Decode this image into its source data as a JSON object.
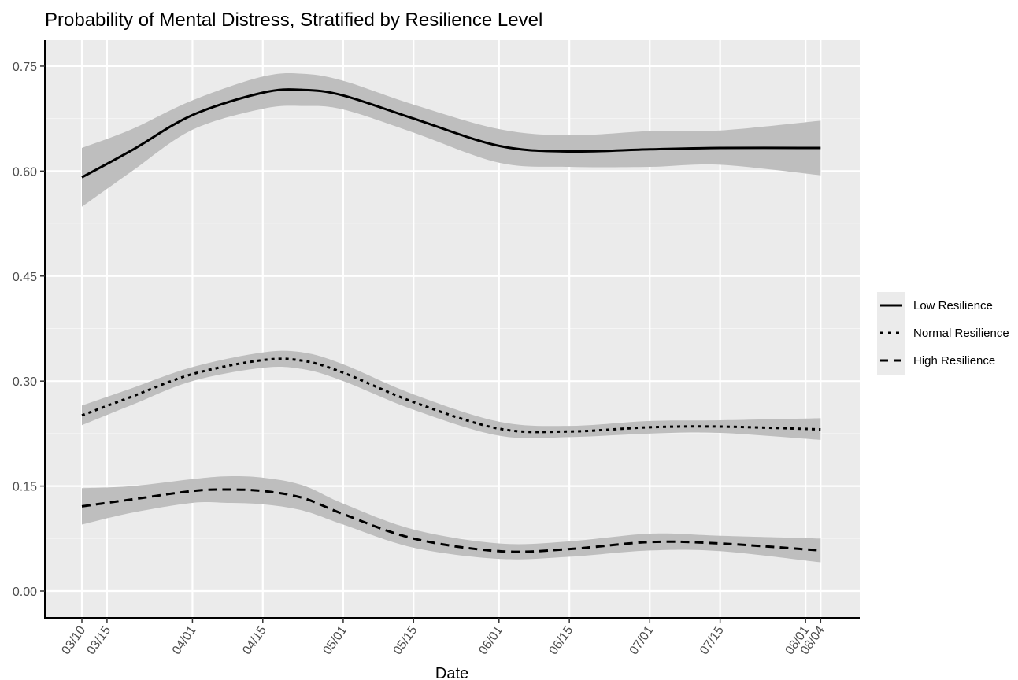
{
  "chart_data": {
    "type": "line",
    "title": "Probability of Mental Distress, Stratified by Resilience Level",
    "xlabel": "Date",
    "ylabel": "",
    "x_ticks": [
      "03/10",
      "03/15",
      "04/01",
      "04/15",
      "05/01",
      "05/15",
      "06/01",
      "06/15",
      "07/01",
      "07/15",
      "08/01",
      "08/04"
    ],
    "x_tick_days": [
      0,
      5,
      22,
      36,
      52,
      66,
      83,
      97,
      113,
      127,
      144,
      147
    ],
    "y_ticks": [
      "0.00",
      "0.15",
      "0.30",
      "0.45",
      "0.60",
      "0.75"
    ],
    "ylim": [
      -0.037,
      0.787
    ],
    "grid": true,
    "legend_position": "right",
    "series": [
      {
        "name": "Low Resilience",
        "linestyle": "solid",
        "x": [
          0,
          10,
          22,
          36,
          44,
          52,
          66,
          83,
          97,
          113,
          127,
          147
        ],
        "y": [
          0.591,
          0.63,
          0.68,
          0.712,
          0.716,
          0.708,
          0.675,
          0.636,
          0.628,
          0.631,
          0.633,
          0.633
        ],
        "lower": [
          0.549,
          0.6,
          0.659,
          0.689,
          0.693,
          0.688,
          0.655,
          0.612,
          0.606,
          0.606,
          0.609,
          0.594
        ],
        "upper": [
          0.633,
          0.66,
          0.701,
          0.735,
          0.739,
          0.729,
          0.695,
          0.66,
          0.651,
          0.657,
          0.658,
          0.672
        ]
      },
      {
        "name": "Normal Resilience",
        "linestyle": "dotted",
        "x": [
          0,
          10,
          22,
          36,
          44,
          52,
          66,
          83,
          97,
          113,
          127,
          147
        ],
        "y": [
          0.251,
          0.278,
          0.31,
          0.33,
          0.329,
          0.312,
          0.27,
          0.232,
          0.228,
          0.234,
          0.235,
          0.231
        ],
        "lower": [
          0.237,
          0.266,
          0.3,
          0.319,
          0.317,
          0.3,
          0.259,
          0.222,
          0.22,
          0.225,
          0.226,
          0.216
        ],
        "upper": [
          0.265,
          0.29,
          0.32,
          0.341,
          0.341,
          0.324,
          0.281,
          0.242,
          0.236,
          0.243,
          0.244,
          0.247
        ]
      },
      {
        "name": "High Resilience",
        "linestyle": "dashed",
        "x": [
          0,
          10,
          22,
          29,
          36,
          44,
          52,
          66,
          83,
          97,
          113,
          127,
          147
        ],
        "y": [
          0.121,
          0.131,
          0.143,
          0.145,
          0.143,
          0.133,
          0.11,
          0.075,
          0.057,
          0.06,
          0.07,
          0.068,
          0.058
        ],
        "lower": [
          0.095,
          0.112,
          0.126,
          0.126,
          0.124,
          0.115,
          0.095,
          0.062,
          0.046,
          0.049,
          0.058,
          0.057,
          0.041
        ],
        "upper": [
          0.147,
          0.15,
          0.16,
          0.164,
          0.162,
          0.151,
          0.125,
          0.088,
          0.068,
          0.071,
          0.082,
          0.079,
          0.075
        ]
      }
    ]
  }
}
